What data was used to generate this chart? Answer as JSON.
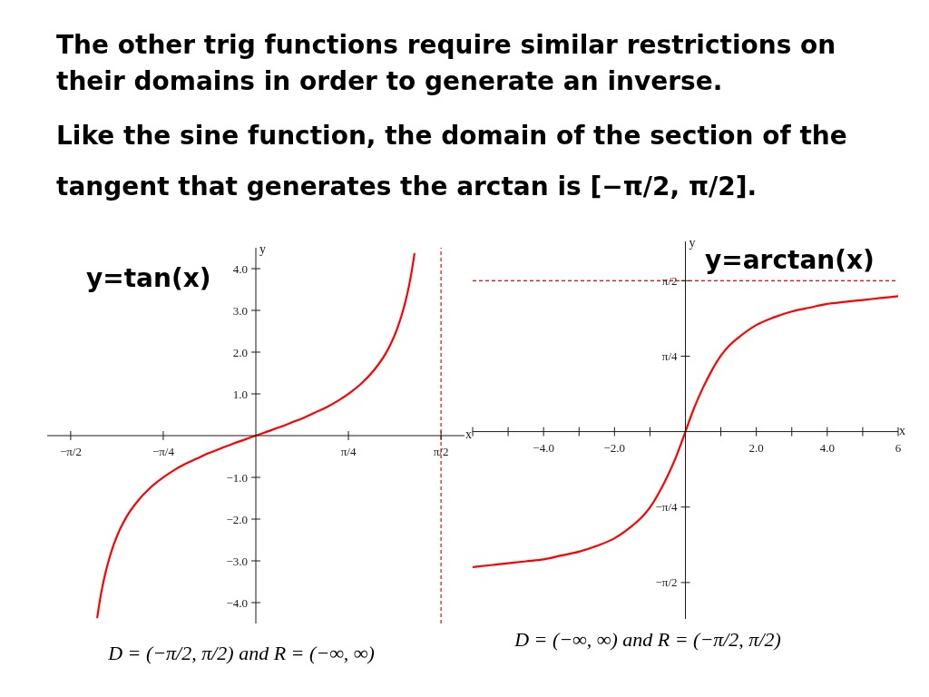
{
  "chart_data": [
    {
      "type": "line",
      "title": "y=tan(x)",
      "xlabel": "x",
      "ylabel": "y",
      "x": [
        -1.345,
        -1.32,
        -1.3,
        -1.275,
        -1.25,
        -1.2,
        -1.15,
        -1.1,
        -1.0,
        -0.9,
        -0.8,
        -0.7,
        -0.6,
        -0.5,
        -0.4,
        -0.3,
        -0.2,
        -0.1,
        0,
        0.1,
        0.2,
        0.3,
        0.4,
        0.5,
        0.6,
        0.7,
        0.8,
        0.9,
        1.0,
        1.1,
        1.15,
        1.2,
        1.25,
        1.275,
        1.3,
        1.32,
        1.345
      ],
      "values": [
        -4.35,
        -3.9,
        -3.6,
        -3.28,
        -3.01,
        -2.57,
        -2.23,
        -1.96,
        -1.56,
        -1.26,
        -1.03,
        -0.84,
        -0.68,
        -0.55,
        -0.42,
        -0.31,
        -0.2,
        -0.1,
        0,
        0.1,
        0.2,
        0.31,
        0.42,
        0.55,
        0.68,
        0.84,
        1.03,
        1.26,
        1.56,
        1.96,
        2.23,
        2.57,
        3.01,
        3.28,
        3.6,
        3.9,
        4.35
      ],
      "color": "#ff0000",
      "xlim": [
        -1.77,
        1.77
      ],
      "ylim": [
        -4.5,
        4.5
      ],
      "xticks": [
        {
          "value": -1.5708,
          "label": "−π/2"
        },
        {
          "value": -0.7854,
          "label": "−π/4"
        },
        {
          "value": 0.7854,
          "label": "π/4"
        },
        {
          "value": 1.5708,
          "label": "π/2"
        }
      ],
      "yticks": [
        {
          "value": -4,
          "label": "−4.0"
        },
        {
          "value": -3,
          "label": "−3.0"
        },
        {
          "value": -2,
          "label": "−2.0"
        },
        {
          "value": -1,
          "label": "−1.0"
        },
        {
          "value": 1,
          "label": "1.0"
        },
        {
          "value": 2,
          "label": "2.0"
        },
        {
          "value": 3,
          "label": "3.0"
        },
        {
          "value": 4,
          "label": "4.0"
        }
      ],
      "ref_lines": [
        {
          "axis": "x",
          "value": 1.5708,
          "color": "#ff0000",
          "line_style": "dashed"
        }
      ],
      "annotations": [
        "The other trig functions require similar restrictions on their domains in order to generate an inverse.",
        "Like the sine function, the domain of the section of the tangent that generates the arctan is [−π/2, π/2].",
        "D = (−π/2, π/2) and R = (−∞, ∞)"
      ]
    },
    {
      "type": "line",
      "title": "y=arctan(x)",
      "xlabel": "x",
      "ylabel": "y",
      "x": [
        -6,
        -5.5,
        -5,
        -4.5,
        -4,
        -3.5,
        -3,
        -2.5,
        -2,
        -1.5,
        -1.25,
        -1,
        -0.75,
        -0.5,
        -0.25,
        0,
        0.25,
        0.5,
        0.75,
        1,
        1.25,
        1.5,
        2,
        2.5,
        3,
        3.5,
        4,
        4.5,
        5,
        5.5,
        6
      ],
      "values": [
        -1.41,
        -1.39,
        -1.37,
        -1.35,
        -1.33,
        -1.29,
        -1.25,
        -1.19,
        -1.11,
        -0.98,
        -0.9,
        -0.79,
        -0.64,
        -0.46,
        -0.25,
        0,
        0.25,
        0.46,
        0.64,
        0.79,
        0.9,
        0.98,
        1.11,
        1.19,
        1.25,
        1.29,
        1.33,
        1.35,
        1.37,
        1.39,
        1.41
      ],
      "color": "#ff0000",
      "xlim": [
        -6,
        6
      ],
      "ylim": [
        -1.95,
        1.98
      ],
      "xticks": [
        {
          "value": -6,
          "label": null
        },
        {
          "value": -5,
          "label": null
        },
        {
          "value": -4,
          "label": "−4.0"
        },
        {
          "value": -3,
          "label": null
        },
        {
          "value": -2,
          "label": "−2.0"
        },
        {
          "value": -1,
          "label": null
        },
        {
          "value": 1,
          "label": null
        },
        {
          "value": 2,
          "label": "2.0"
        },
        {
          "value": 3,
          "label": null
        },
        {
          "value": 4,
          "label": "4.0"
        },
        {
          "value": 5,
          "label": null
        },
        6
      ],
      "yticks": [
        {
          "value": -1.5708,
          "label": "−π/2"
        },
        {
          "value": -0.7854,
          "label": "−π/4"
        },
        {
          "value": 0.7854,
          "label": "π/4"
        },
        {
          "value": 1.5708,
          "label": "π/2"
        }
      ],
      "ref_lines": [
        {
          "axis": "y",
          "value": 1.5708,
          "color": "#ff0000",
          "line_style": "dashed"
        }
      ],
      "annotations": [
        "D = (−∞, ∞) and R = (−π/2, π/2)"
      ]
    }
  ]
}
